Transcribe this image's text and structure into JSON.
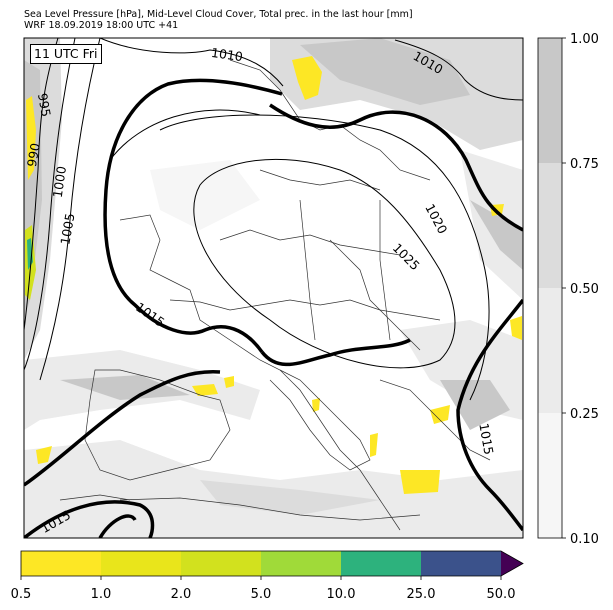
{
  "header": {
    "title_line1": "Sea Level Pressure [hPa], Mid-Level Cloud Cover, Total prec. in the last hour [mm]",
    "title_line2": "WRF 18.09.2019 18:00 UTC +41"
  },
  "map": {
    "time_stamp": "11 UTC Fri",
    "isobar_labels": [
      "1010",
      "1010",
      "995",
      "990",
      "1000",
      "1005",
      "1020",
      "1025",
      "1015",
      "1015",
      "1015"
    ]
  },
  "cloud_colorbar": {
    "ticks": [
      "1.00",
      "0.75",
      "0.50",
      "0.25",
      "0.10"
    ],
    "colors": [
      "#c8c8c8",
      "#dcdcdc",
      "#ebebeb",
      "#f6f6f6"
    ]
  },
  "precip_colorbar": {
    "ticks": [
      "0.5",
      "1.0",
      "2.0",
      "5.0",
      "10.0",
      "25.0",
      "50.0"
    ],
    "colors": [
      "#fde725",
      "#e9e51b",
      "#d2e11e",
      "#a0da39",
      "#2db27d",
      "#3b528b",
      "#440154"
    ]
  }
}
